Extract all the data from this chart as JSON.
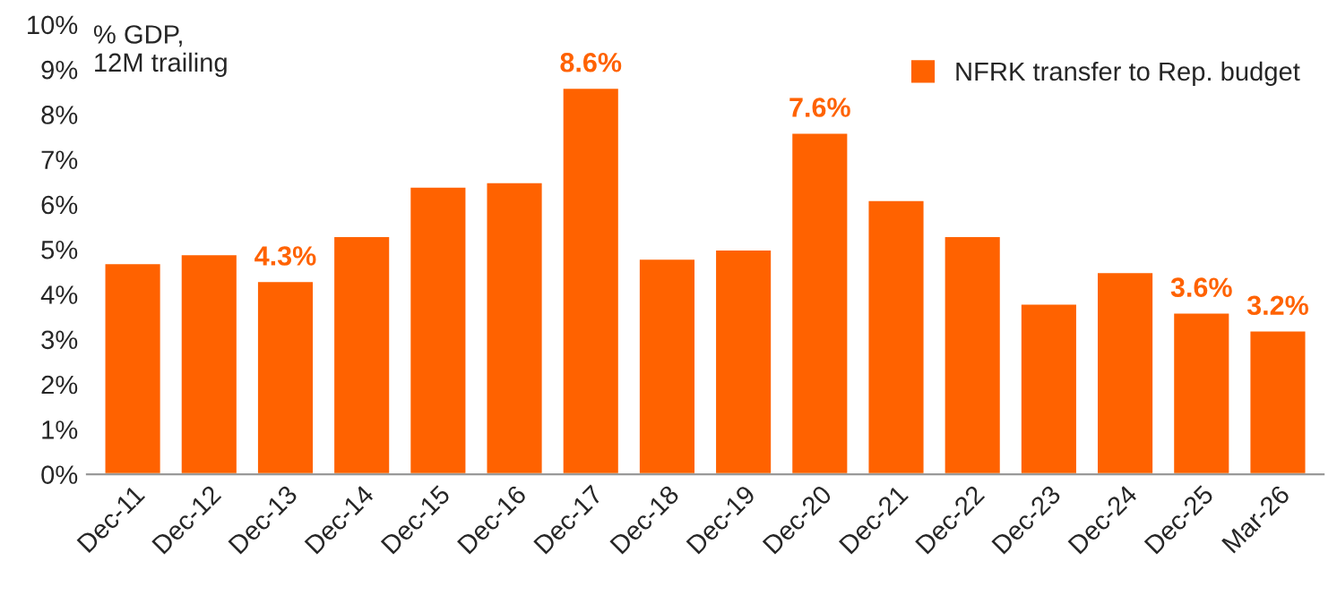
{
  "chart_data": {
    "type": "bar",
    "ylabel": "% GDP,\n12M trailing",
    "categories": [
      "Dec-11",
      "Dec-12",
      "Dec-13",
      "Dec-14",
      "Dec-15",
      "Dec-16",
      "Dec-17",
      "Dec-18",
      "Dec-19",
      "Dec-20",
      "Dec-21",
      "Dec-22",
      "Dec-23",
      "Dec-24",
      "Dec-25",
      "Mar-26"
    ],
    "series": [
      {
        "name": "NFRK transfer to Rep. budget",
        "color": "#ff6200",
        "values": [
          4.7,
          4.9,
          4.3,
          5.3,
          6.4,
          6.5,
          8.6,
          4.8,
          5.0,
          7.6,
          6.1,
          5.3,
          3.8,
          4.5,
          3.6,
          3.2
        ],
        "value_labels": [
          null,
          null,
          "4.3%",
          null,
          null,
          null,
          "8.6%",
          null,
          null,
          "7.6%",
          null,
          null,
          null,
          null,
          "3.6%",
          "3.2%"
        ]
      }
    ],
    "ylim": [
      0,
      10
    ],
    "yticks": [
      {
        "value": 0,
        "label": "0%"
      },
      {
        "value": 1,
        "label": "1%"
      },
      {
        "value": 2,
        "label": "2%"
      },
      {
        "value": 3,
        "label": "3%"
      },
      {
        "value": 4,
        "label": "4%"
      },
      {
        "value": 5,
        "label": "5%"
      },
      {
        "value": 6,
        "label": "6%"
      },
      {
        "value": 7,
        "label": "7%"
      },
      {
        "value": 8,
        "label": "8%"
      },
      {
        "value": 9,
        "label": "9%"
      },
      {
        "value": 10,
        "label": "10%"
      }
    ],
    "grid": false,
    "legend": "top right"
  }
}
